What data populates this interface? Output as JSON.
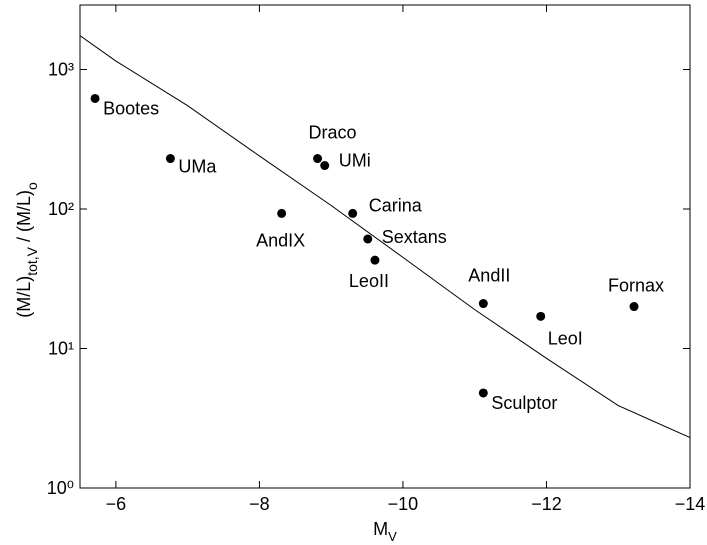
{
  "chart_data": {
    "type": "scatter",
    "xlabel": [
      "M",
      "V"
    ],
    "ylabel": [
      "(M/L)",
      "tot,V",
      "  /  (M/L)",
      "o"
    ],
    "xlim": [
      -5.5,
      -14
    ],
    "ylim": [
      1,
      2900
    ],
    "log_y": true,
    "xticks": [
      {
        "value": -6,
        "label": "−6"
      },
      {
        "value": -8,
        "label": "−8"
      },
      {
        "value": -10,
        "label": "−10"
      },
      {
        "value": -12,
        "label": "−12"
      },
      {
        "value": -14,
        "label": "−14"
      }
    ],
    "yticks": [
      {
        "value": 1,
        "label": "10⁰"
      },
      {
        "value": 10,
        "label": "10¹"
      },
      {
        "value": 100,
        "label": "10²"
      },
      {
        "value": 1000,
        "label": "10³"
      }
    ],
    "points": {
      "color": "#000000",
      "labels": [
        "Bootes",
        "UMa",
        "AndIX",
        "Draco",
        "UMi",
        "Carina",
        "Sextans",
        "LeoII",
        "AndII",
        "LeoI",
        "Fornax",
        "Sculptor"
      ],
      "x": [
        -5.71,
        -6.76,
        -8.31,
        -8.81,
        -8.91,
        -9.3,
        -9.51,
        -9.61,
        -11.12,
        -11.92,
        -13.22,
        -11.12
      ],
      "y": [
        620,
        230,
        93,
        230,
        205,
        93,
        61,
        43,
        21,
        17,
        20,
        4.8
      ]
    },
    "curve": {
      "color": "#000000",
      "x": [
        -5.5,
        -6,
        -7,
        -8,
        -9,
        -10,
        -11,
        -12,
        -13,
        -14
      ],
      "y": [
        1750,
        1150,
        550,
        240,
        106,
        45,
        19,
        8.5,
        3.9,
        2.3
      ]
    }
  }
}
